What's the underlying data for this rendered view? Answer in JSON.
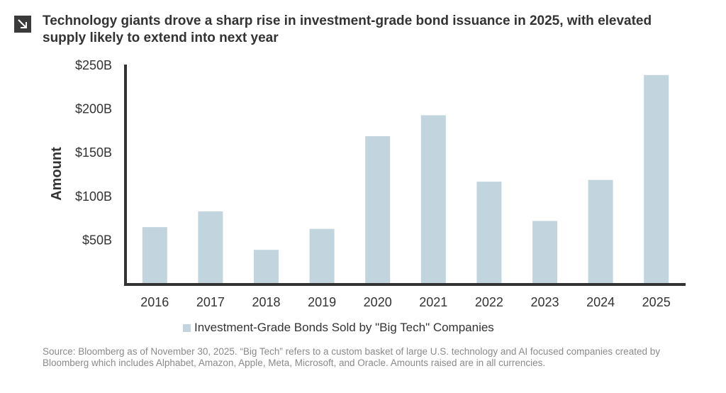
{
  "title": "Technology giants drove a sharp rise in investment-grade bond issuance in 2025, with elevated supply likely to extend into next year",
  "source_note": "Source: Bloomberg as of November 30, 2025. “Big Tech” refers to a custom basket of large U.S. technology and AI focused companies created by Bloomberg which includes Alphabet, Amazon, Apple, Meta, Microsoft, and Oracle. Amounts raised are in all currencies.",
  "icon": "arrow-down-right-icon",
  "colors": {
    "bar": "#c2d4de",
    "axis": "#333333",
    "icon_bg": "#3a3a3a"
  },
  "chart_data": {
    "type": "bar",
    "title": "",
    "ylabel": "Amount",
    "xlabel": "",
    "categories": [
      "2016",
      "2017",
      "2018",
      "2019",
      "2020",
      "2021",
      "2022",
      "2023",
      "2024",
      "2025"
    ],
    "series": [
      {
        "name": "Investment-Grade Bonds Sold by \"Big Tech\" Companies",
        "values": [
          64,
          82,
          38,
          62,
          168,
          192,
          116,
          71,
          118,
          238
        ]
      }
    ],
    "ylim": [
      0,
      250
    ],
    "yticks": [
      {
        "value": 50,
        "label": "$50B"
      },
      {
        "value": 100,
        "label": "$100B"
      },
      {
        "value": 150,
        "label": "$150B"
      },
      {
        "value": 200,
        "label": "$200B"
      },
      {
        "value": 250,
        "label": "$250B"
      }
    ],
    "grid": false,
    "legend_position": "bottom"
  }
}
